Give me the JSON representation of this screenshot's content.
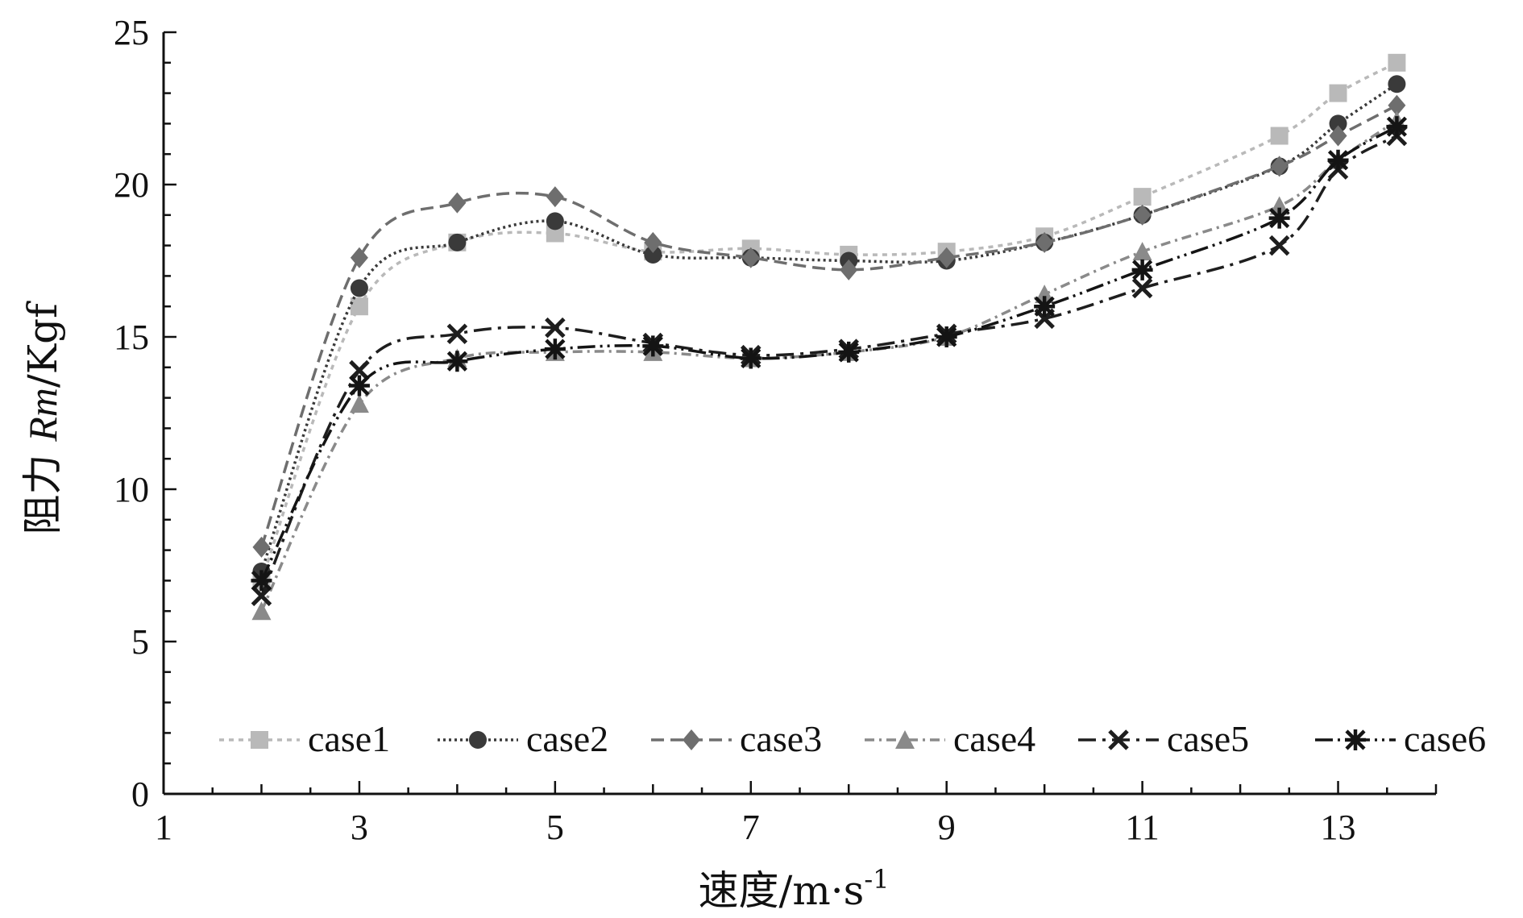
{
  "chart_data": {
    "type": "line",
    "title": "",
    "xlabel": "速度/m·s",
    "xlabel_superscript": "-1",
    "ylabel_prefix": "阻力 ",
    "ylabel_italic": "Rm",
    "ylabel_suffix": "/Kgf",
    "xlim": [
      1,
      14
    ],
    "ylim": [
      0,
      25
    ],
    "xticks": [
      1,
      3,
      5,
      7,
      9,
      11,
      13
    ],
    "yticks": [
      0,
      5,
      10,
      15,
      20,
      25
    ],
    "legend_position": "bottom",
    "x": [
      2,
      3,
      4,
      5,
      6,
      7,
      8,
      9,
      10,
      11,
      12.4,
      13,
      13.6
    ],
    "series": [
      {
        "name": "case1",
        "color": "#b9b9b9",
        "dash": "6,6",
        "marker": "square",
        "values": [
          7.0,
          16.0,
          18.1,
          18.4,
          17.8,
          17.9,
          17.7,
          17.8,
          18.3,
          19.6,
          21.6,
          23.0,
          24.0
        ]
      },
      {
        "name": "case2",
        "color": "#3a3a3a",
        "dash": "3,4",
        "marker": "circle",
        "values": [
          7.3,
          16.6,
          18.1,
          18.8,
          17.7,
          17.6,
          17.5,
          17.5,
          18.1,
          19.0,
          20.6,
          22.0,
          23.3
        ]
      },
      {
        "name": "case3",
        "color": "#6e6e6e",
        "dash": "16,8",
        "marker": "diamond",
        "values": [
          8.1,
          17.6,
          19.4,
          19.6,
          18.1,
          17.6,
          17.2,
          17.6,
          18.1,
          19.0,
          20.6,
          21.6,
          22.6
        ]
      },
      {
        "name": "case4",
        "color": "#8a8a8a",
        "dash": "12,6,3,6",
        "marker": "triangle",
        "values": [
          6.0,
          12.8,
          14.3,
          14.5,
          14.5,
          14.3,
          14.5,
          15.0,
          16.4,
          17.8,
          19.3,
          20.8,
          22.1
        ]
      },
      {
        "name": "case5",
        "color": "#1e1e1e",
        "dash": "22,8,4,8",
        "marker": "x",
        "values": [
          6.5,
          13.9,
          15.1,
          15.3,
          14.8,
          14.4,
          14.6,
          15.1,
          15.6,
          16.6,
          18.0,
          20.5,
          21.6
        ]
      },
      {
        "name": "case6",
        "color": "#141414",
        "dash": "22,6,3,6,3,6",
        "marker": "star",
        "values": [
          7.0,
          13.4,
          14.2,
          14.6,
          14.7,
          14.3,
          14.5,
          15.0,
          16.0,
          17.2,
          18.9,
          20.8,
          21.9
        ]
      }
    ]
  }
}
